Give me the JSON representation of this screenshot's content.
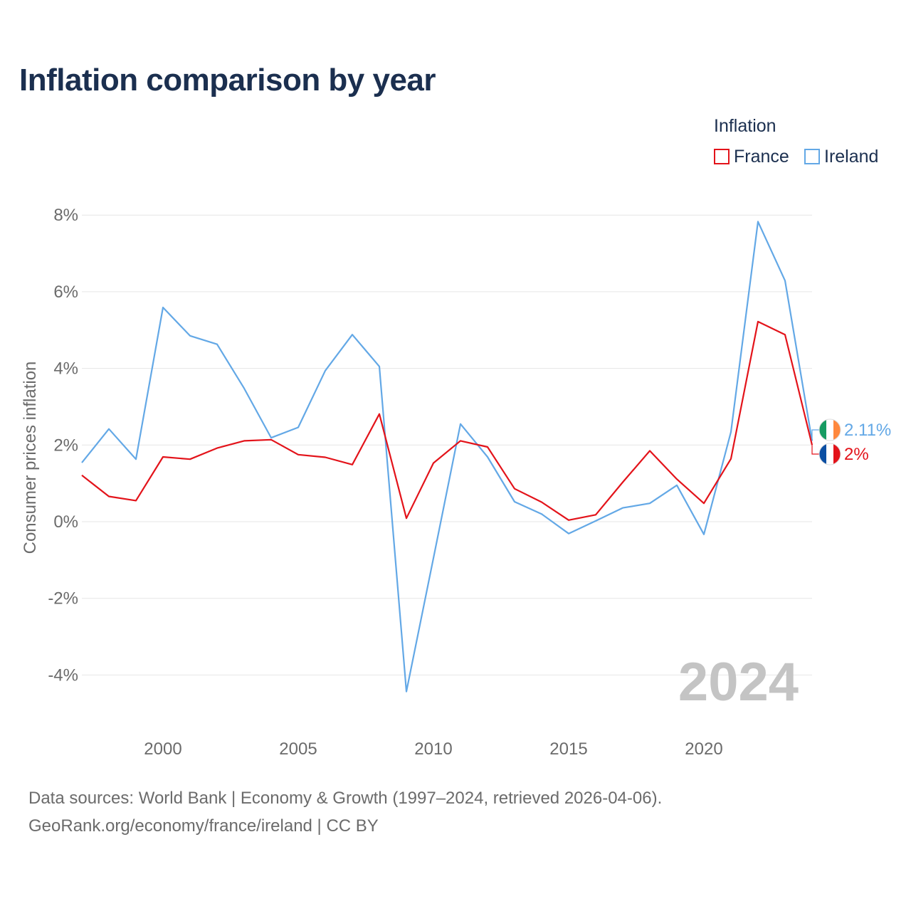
{
  "chart_data": {
    "type": "line",
    "title": "Inflation comparison by year",
    "legend_title": "Inflation",
    "ylabel": "Consumer prices inflation",
    "xlabel": "",
    "xlim": [
      1997,
      2024
    ],
    "ylim": [
      -5.3,
      8.3
    ],
    "yticks": [
      8,
      6,
      4,
      2,
      0,
      -2,
      -4
    ],
    "ytick_labels": [
      "8%",
      "6%",
      "4%",
      "2%",
      "0%",
      "-2%",
      "-4%"
    ],
    "xticks": [
      2000,
      2005,
      2010,
      2015,
      2020
    ],
    "xtick_labels": [
      "2000",
      "2005",
      "2010",
      "2015",
      "2020"
    ],
    "year_watermark": "2024",
    "x": [
      1997,
      1998,
      1999,
      2000,
      2001,
      2002,
      2003,
      2004,
      2005,
      2006,
      2007,
      2008,
      2009,
      2010,
      2011,
      2012,
      2013,
      2014,
      2015,
      2016,
      2017,
      2018,
      2019,
      2020,
      2021,
      2022,
      2023,
      2024
    ],
    "series": [
      {
        "name": "France",
        "color": "#e3131a",
        "values": [
          1.21,
          0.66,
          0.55,
          1.69,
          1.63,
          1.92,
          2.11,
          2.14,
          1.75,
          1.68,
          1.49,
          2.81,
          0.09,
          1.53,
          2.11,
          1.95,
          0.86,
          0.51,
          0.04,
          0.18,
          1.03,
          1.85,
          1.11,
          0.48,
          1.64,
          5.22,
          4.88,
          2.0
        ],
        "end_label": "2%"
      },
      {
        "name": "Ireland",
        "color": "#63a8e6",
        "values": [
          1.54,
          2.42,
          1.63,
          5.59,
          4.85,
          4.63,
          3.48,
          2.19,
          2.46,
          3.94,
          4.88,
          4.05,
          -4.43,
          -0.95,
          2.55,
          1.69,
          0.52,
          0.2,
          -0.31,
          0.02,
          0.36,
          0.48,
          0.95,
          -0.33,
          2.34,
          7.83,
          6.29,
          2.11
        ],
        "end_label": "2.11%"
      }
    ]
  },
  "footer": {
    "source_line1": "Data sources: World Bank | Economy & Growth (1997–2024, retrieved 2026-04-06).",
    "source_line2": "GeoRank.org/economy/france/ireland | CC BY"
  },
  "colors": {
    "title": "#1b2f4f",
    "axis_text": "#6b6b6b",
    "grid": "#e6e6e6",
    "watermark": "#c4c4c4",
    "flag_france": [
      "#0b4fa3",
      "#ffffff",
      "#e3131a"
    ],
    "flag_ireland": [
      "#169b62",
      "#ffffff",
      "#ff883e"
    ]
  }
}
